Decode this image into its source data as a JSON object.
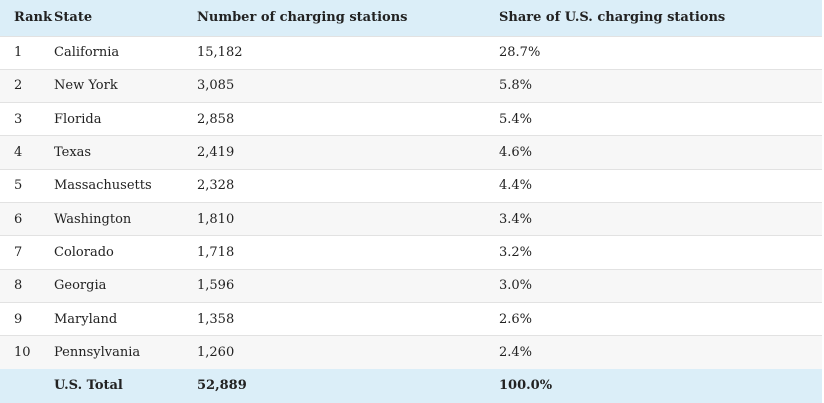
{
  "table": {
    "header": [
      "Rank",
      "State",
      "Number of charging stations",
      "Share of U.S. charging stations"
    ],
    "rows": [
      [
        "1",
        "California",
        "15,182",
        "28.7%"
      ],
      [
        "2",
        "New York",
        "3,085",
        "5.8%"
      ],
      [
        "3",
        "Florida",
        "2,858",
        "5.4%"
      ],
      [
        "4",
        "Texas",
        "2,419",
        "4.6%"
      ],
      [
        "5",
        "Massachusetts",
        "2,328",
        "4.4%"
      ],
      [
        "6",
        "Washington",
        "1,810",
        "3.4%"
      ],
      [
        "7",
        "Colorado",
        "1,718",
        "3.2%"
      ],
      [
        "8",
        "Georgia",
        "1,596",
        "3.0%"
      ],
      [
        "9",
        "Maryland",
        "1,358",
        "2.6%"
      ],
      [
        "10",
        "Pennsylvania",
        "1,260",
        "2.4%"
      ]
    ],
    "total": [
      "U.S. Total",
      "52,889",
      "100.0%"
    ]
  }
}
